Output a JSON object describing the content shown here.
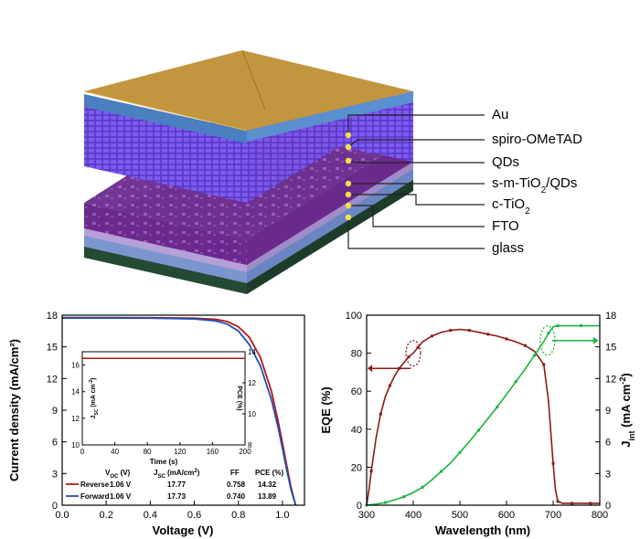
{
  "device": {
    "layers": [
      {
        "label": "Au",
        "sub": ""
      },
      {
        "label": "spiro-OMeTAD",
        "sub": ""
      },
      {
        "label": "QDs",
        "sub": ""
      },
      {
        "label": "s-m-TiO",
        "sub": "2",
        "tail": "/QDs"
      },
      {
        "label": "c-TiO",
        "sub": "2",
        "tail": ""
      },
      {
        "label": "FTO",
        "sub": ""
      },
      {
        "label": "glass",
        "sub": ""
      }
    ],
    "colors": {
      "au": "#b8893a",
      "spiro": "#6a3fd6",
      "qds": "#7b2d9a",
      "tio2": "#a884c8",
      "fto": "#8fa8d8",
      "glass": "#2f5a40",
      "marker": "#f2e14a"
    }
  },
  "chart_data": [
    {
      "type": "line",
      "xlabel": "Voltage (V)",
      "ylabel": "Current density (mA/cm²)",
      "xlim": [
        0.0,
        1.1
      ],
      "ylim": [
        0,
        18
      ],
      "xticks": [
        "0.0",
        "0.2",
        "0.4",
        "0.6",
        "0.8",
        "1.0"
      ],
      "yticks": [
        "0",
        "3",
        "6",
        "9",
        "12",
        "15",
        "18"
      ],
      "series": [
        {
          "name": "Reverse",
          "color": "#b01818",
          "x": [
            0.0,
            0.2,
            0.4,
            0.6,
            0.7,
            0.75,
            0.8,
            0.85,
            0.9,
            0.95,
            0.98,
            1.0,
            1.02,
            1.04,
            1.06
          ],
          "y": [
            17.77,
            17.77,
            17.76,
            17.72,
            17.6,
            17.4,
            16.9,
            15.9,
            14.0,
            10.8,
            8.0,
            5.9,
            3.7,
            1.6,
            0.0
          ]
        },
        {
          "name": "Forward",
          "color": "#1f4fb0",
          "x": [
            0.0,
            0.2,
            0.4,
            0.6,
            0.7,
            0.75,
            0.8,
            0.85,
            0.9,
            0.95,
            0.98,
            1.0,
            1.02,
            1.04,
            1.06
          ],
          "y": [
            17.73,
            17.73,
            17.72,
            17.65,
            17.45,
            17.15,
            16.5,
            15.2,
            13.2,
            10.0,
            7.4,
            5.4,
            3.3,
            1.4,
            0.0
          ]
        }
      ],
      "legend_position": "bottom",
      "table": {
        "headers": [
          "V",
          "J",
          "FF",
          "PCE (%)"
        ],
        "header_voc": {
          "main": "V",
          "sub": "OC",
          "unit": " (V)"
        },
        "header_jsc": {
          "main": "J",
          "sub": "SC",
          "unit": " (mA/cm",
          "sup": "2",
          "close": ")"
        },
        "header_ff": "FF",
        "header_pce": "PCE (%)",
        "rows": [
          {
            "name": "Reverse",
            "voc": "1.06 V",
            "jsc": "17.77",
            "ff": "0.758",
            "pce": "14.32"
          },
          {
            "name": "Forward",
            "voc": "1.06 V",
            "jsc": "17.73",
            "ff": "0.740",
            "pce": "13.89"
          }
        ]
      },
      "inset": {
        "type": "line",
        "xlabel": "Time (s)",
        "ylabel_left": {
          "main": "J",
          "sub": "SC",
          "unit": " (mA cm",
          "sup": "-2",
          "close": ")"
        },
        "ylabel_right": "PCE (%)",
        "xlim": [
          0,
          200
        ],
        "ylim_left": [
          10,
          17
        ],
        "ylim_right": [
          8,
          14
        ],
        "xticks": [
          "0",
          "40",
          "80",
          "120",
          "160",
          "200"
        ],
        "yticks_left": [
          "10",
          "12",
          "14",
          "16"
        ],
        "yticks_right": [
          "8",
          "10",
          "12",
          "14"
        ],
        "series": [
          {
            "name": "JSC",
            "color": "#b01818",
            "value": 16.5
          },
          {
            "name": "PCE",
            "color": "#b01818",
            "value": 13.3
          }
        ]
      }
    },
    {
      "type": "line",
      "xlabel": "Wavelength (nm)",
      "ylabel_left": "EQE (%)",
      "ylabel_right": {
        "main": "J",
        "sub": "int",
        "unit": " (mA cm",
        "sup": "-2",
        "close": ")"
      },
      "xlim": [
        300,
        800
      ],
      "ylim_left": [
        0,
        100
      ],
      "ylim_right": [
        0,
        18
      ],
      "xticks": [
        "300",
        "400",
        "500",
        "600",
        "700",
        "800"
      ],
      "yticks_left": [
        "0",
        "20",
        "40",
        "60",
        "80",
        "100"
      ],
      "yticks_right": [
        "0",
        "3",
        "6",
        "9",
        "12",
        "15",
        "18"
      ],
      "series": [
        {
          "name": "EQE",
          "color": "#8b1a1a",
          "axis": "left",
          "x": [
            300,
            305,
            310,
            320,
            330,
            340,
            350,
            360,
            370,
            380,
            390,
            400,
            410,
            420,
            440,
            460,
            480,
            500,
            520,
            540,
            560,
            580,
            600,
            620,
            640,
            660,
            680,
            690,
            700,
            705,
            710,
            720,
            740,
            760,
            780,
            800
          ],
          "y": [
            0,
            8,
            18,
            35,
            48,
            57,
            63,
            68,
            72,
            75,
            78,
            80,
            83,
            86,
            89,
            91,
            92,
            92.5,
            92,
            91,
            90,
            89,
            87.5,
            86,
            84,
            81,
            74,
            55,
            22,
            8,
            2,
            1,
            1,
            1,
            1,
            1
          ]
        },
        {
          "name": "Jint",
          "color": "#19b43c",
          "axis": "right",
          "x": [
            300,
            320,
            340,
            360,
            380,
            400,
            420,
            440,
            460,
            480,
            500,
            520,
            540,
            560,
            580,
            600,
            620,
            640,
            660,
            680,
            690,
            700,
            710,
            720,
            760,
            800
          ],
          "y": [
            0,
            0.1,
            0.25,
            0.5,
            0.8,
            1.2,
            1.7,
            2.4,
            3.2,
            4.0,
            5.0,
            6.0,
            7.1,
            8.2,
            9.3,
            10.5,
            11.7,
            12.9,
            14.2,
            15.5,
            16.3,
            16.9,
            17.0,
            17.0,
            17.0,
            17.0
          ]
        }
      ],
      "annotations": [
        {
          "type": "ellipse",
          "near": "EQE shoulder near 400 nm",
          "color": "#8b1a1a"
        },
        {
          "type": "arrow",
          "direction": "left",
          "target_axis": "left",
          "color": "#8b1a1a"
        },
        {
          "type": "ellipse",
          "near": "Jint plateau near 690 nm",
          "color": "#19b43c"
        },
        {
          "type": "arrow",
          "direction": "right",
          "target_axis": "right",
          "color": "#19b43c"
        }
      ]
    }
  ]
}
